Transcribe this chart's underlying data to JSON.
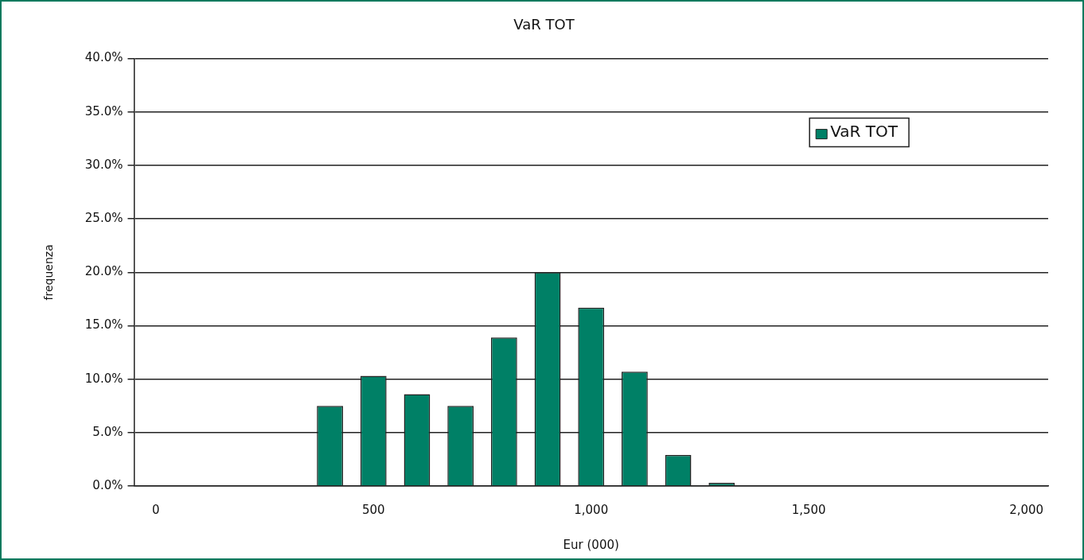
{
  "chart_data": {
    "type": "bar",
    "title": "VaR TOT",
    "xlabel": "Eur (000)",
    "ylabel": "frequenza",
    "categories": [
      "0",
      null,
      null,
      null,
      null,
      "500",
      null,
      null,
      null,
      null,
      "1,000",
      null,
      null,
      null,
      null,
      "1,500",
      null,
      null,
      null,
      null,
      "2,000"
    ],
    "series": [
      {
        "name": "VaR TOT",
        "color": "#008066",
        "values": [
          0,
          0,
          0,
          0,
          7.5,
          10.3,
          8.6,
          7.5,
          13.9,
          20.0,
          16.7,
          10.7,
          2.9,
          0.3,
          0,
          0,
          0,
          0,
          0,
          0,
          0
        ]
      }
    ],
    "ylim": [
      0,
      40
    ],
    "yticks": [
      {
        "value": 0,
        "label": "0.0%"
      },
      {
        "value": 5,
        "label": "5.0%"
      },
      {
        "value": 10,
        "label": "10.0%"
      },
      {
        "value": 15,
        "label": "15.0%"
      },
      {
        "value": 20,
        "label": "20.0%"
      },
      {
        "value": 25,
        "label": "25.0%"
      },
      {
        "value": 30,
        "label": "30.0%"
      },
      {
        "value": 35,
        "label": "35.0%"
      },
      {
        "value": 40,
        "label": "40.0%"
      }
    ],
    "grid": "y",
    "legend": "top right"
  }
}
